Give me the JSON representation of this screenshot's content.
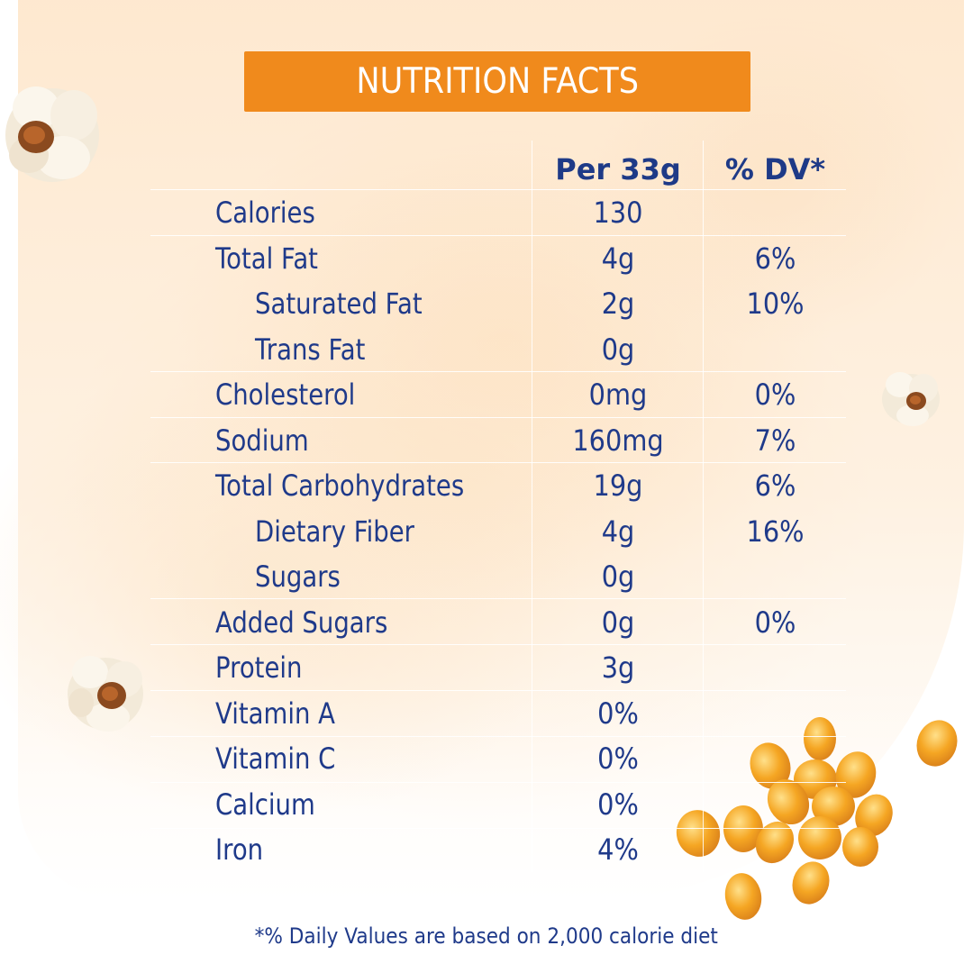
{
  "title": "NUTRITION FACTS",
  "columns": {
    "amount": "Per 33g",
    "dv": "% DV*"
  },
  "rows": [
    {
      "name": "Calories",
      "amount": "130",
      "dv": "",
      "indent": false
    },
    {
      "name": "Total Fat",
      "amount": "4g",
      "dv": "6%",
      "indent": false
    },
    {
      "name": "Saturated Fat",
      "amount": "2g",
      "dv": "10%",
      "indent": true
    },
    {
      "name": "Trans Fat",
      "amount": "0g",
      "dv": "",
      "indent": true
    },
    {
      "name": "Cholesterol",
      "amount": "0mg",
      "dv": "0%",
      "indent": false
    },
    {
      "name": "Sodium",
      "amount": "160mg",
      "dv": "7%",
      "indent": false
    },
    {
      "name": "Total Carbohydrates",
      "amount": "19g",
      "dv": "6%",
      "indent": false
    },
    {
      "name": "Dietary Fiber",
      "amount": "4g",
      "dv": "16%",
      "indent": true
    },
    {
      "name": "Sugars",
      "amount": "0g",
      "dv": "",
      "indent": true
    },
    {
      "name": "Added Sugars",
      "amount": "0g",
      "dv": "0%",
      "indent": false
    },
    {
      "name": "Protein",
      "amount": "3g",
      "dv": "",
      "indent": false
    },
    {
      "name": "Vitamin A",
      "amount": "0%",
      "dv": "",
      "indent": false
    },
    {
      "name": "Vitamin C",
      "amount": "0%",
      "dv": "",
      "indent": false
    },
    {
      "name": "Calcium",
      "amount": "0%",
      "dv": "",
      "indent": false
    },
    {
      "name": "Iron",
      "amount": "4%",
      "dv": "",
      "indent": false
    }
  ],
  "footnote": "*% Daily Values are based on 2,000 calorie diet",
  "colors": {
    "header_bg": "#f08a1c",
    "text": "#1f3a8a",
    "background_wash": "#fde1c0"
  },
  "icons": [
    "popcorn-icon",
    "corn-kernels-icon"
  ]
}
